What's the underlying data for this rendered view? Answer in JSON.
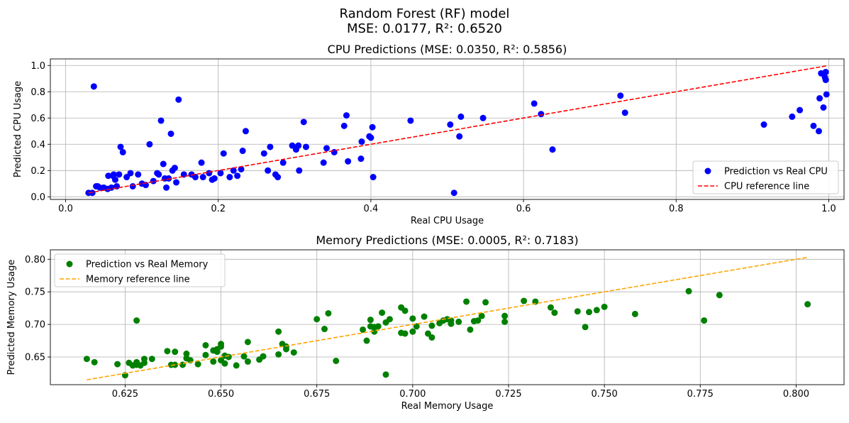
{
  "figure": {
    "title_line1": "Random Forest (RF) model",
    "title_line2": "MSE: 0.0177, R²: 0.6520"
  },
  "chart_data": [
    {
      "type": "scatter",
      "title": "CPU Predictions (MSE: 0.0350, R²: 0.5856)",
      "xlabel": "Real CPU Usage",
      "ylabel": "Predicted CPU Usage",
      "xlim": [
        -0.02,
        1.02
      ],
      "ylim": [
        -0.02,
        1.05
      ],
      "xticks": [
        0.0,
        0.2,
        0.4,
        0.6,
        0.8,
        1.0
      ],
      "xtick_labels": [
        "0.0",
        "0.2",
        "0.4",
        "0.6",
        "0.8",
        "1.0"
      ],
      "yticks": [
        0.0,
        0.2,
        0.4,
        0.6,
        0.8,
        1.0
      ],
      "ytick_labels": [
        "0.0",
        "0.2",
        "0.4",
        "0.6",
        "0.8",
        "1.0"
      ],
      "grid": true,
      "legend_position": "lower-right",
      "series": [
        {
          "name": "Prediction vs Real CPU",
          "kind": "scatter",
          "color": "#0000ff",
          "x": [
            0.03,
            0.035,
            0.04,
            0.042,
            0.045,
            0.05,
            0.055,
            0.056,
            0.06,
            0.062,
            0.063,
            0.065,
            0.067,
            0.07,
            0.072,
            0.075,
            0.08,
            0.085,
            0.088,
            0.095,
            0.1,
            0.105,
            0.11,
            0.115,
            0.12,
            0.122,
            0.125,
            0.128,
            0.13,
            0.132,
            0.135,
            0.138,
            0.14,
            0.143,
            0.145,
            0.148,
            0.155,
            0.165,
            0.17,
            0.178,
            0.18,
            0.188,
            0.192,
            0.195,
            0.203,
            0.207,
            0.215,
            0.22,
            0.225,
            0.23,
            0.232,
            0.236,
            0.26,
            0.265,
            0.268,
            0.275,
            0.278,
            0.285,
            0.297,
            0.302,
            0.305,
            0.306,
            0.312,
            0.315,
            0.338,
            0.342,
            0.352,
            0.365,
            0.368,
            0.37,
            0.387,
            0.388,
            0.398,
            0.4,
            0.402,
            0.403,
            0.452,
            0.504,
            0.509,
            0.516,
            0.518,
            0.547,
            0.614,
            0.623,
            0.638,
            0.727,
            0.733,
            0.915,
            0.952,
            0.962,
            0.98,
            0.987,
            0.988,
            0.99,
            0.993,
            0.995,
            0.996,
            0.996,
            0.997,
            0.037
          ],
          "y": [
            0.03,
            0.03,
            0.08,
            0.08,
            0.07,
            0.07,
            0.06,
            0.16,
            0.07,
            0.16,
            0.17,
            0.13,
            0.08,
            0.17,
            0.38,
            0.34,
            0.15,
            0.18,
            0.08,
            0.17,
            0.1,
            0.09,
            0.4,
            0.12,
            0.18,
            0.17,
            0.58,
            0.25,
            0.14,
            0.07,
            0.14,
            0.48,
            0.2,
            0.22,
            0.11,
            0.74,
            0.17,
            0.17,
            0.15,
            0.26,
            0.15,
            0.18,
            0.13,
            0.14,
            0.18,
            0.33,
            0.15,
            0.2,
            0.16,
            0.21,
            0.35,
            0.5,
            0.33,
            0.2,
            0.38,
            0.17,
            0.15,
            0.26,
            0.39,
            0.36,
            0.39,
            0.2,
            0.57,
            0.38,
            0.26,
            0.37,
            0.34,
            0.54,
            0.62,
            0.27,
            0.29,
            0.42,
            0.46,
            0.45,
            0.53,
            0.15,
            0.58,
            0.55,
            0.03,
            0.46,
            0.61,
            0.6,
            0.71,
            0.63,
            0.36,
            0.77,
            0.64,
            0.55,
            0.61,
            0.66,
            0.54,
            0.5,
            0.75,
            0.94,
            0.68,
            0.91,
            0.89,
            0.95,
            0.78,
            0.84
          ]
        },
        {
          "name": "CPU reference line",
          "kind": "line",
          "style": "dashed",
          "color": "#ff0000",
          "x": [
            0.03,
            0.997
          ],
          "y": [
            0.03,
            0.997
          ]
        }
      ]
    },
    {
      "type": "scatter",
      "title": "Memory Predictions (MSE: 0.0005, R²: 0.7183)",
      "xlabel": "Real Memory Usage",
      "ylabel": "Predicted Memory Usage",
      "xlim": [
        0.6055,
        0.8125
      ],
      "ylim": [
        0.6075,
        0.8145
      ],
      "xticks": [
        0.625,
        0.65,
        0.675,
        0.7,
        0.725,
        0.75,
        0.775,
        0.8
      ],
      "xtick_labels": [
        "0.625",
        "0.650",
        "0.675",
        "0.700",
        "0.725",
        "0.750",
        "0.775",
        "0.800"
      ],
      "yticks": [
        0.65,
        0.7,
        0.75,
        0.8
      ],
      "ytick_labels": [
        "0.65",
        "0.70",
        "0.75",
        "0.80"
      ],
      "grid": true,
      "legend_position": "upper-left",
      "series": [
        {
          "name": "Prediction vs Real Memory",
          "kind": "scatter",
          "color": "#008000",
          "x": [
            0.615,
            0.617,
            0.623,
            0.625,
            0.626,
            0.627,
            0.628,
            0.628,
            0.629,
            0.63,
            0.63,
            0.632,
            0.636,
            0.637,
            0.638,
            0.638,
            0.64,
            0.641,
            0.641,
            0.642,
            0.644,
            0.646,
            0.646,
            0.648,
            0.648,
            0.649,
            0.649,
            0.65,
            0.65,
            0.65,
            0.651,
            0.651,
            0.652,
            0.654,
            0.656,
            0.657,
            0.657,
            0.66,
            0.661,
            0.665,
            0.665,
            0.666,
            0.667,
            0.667,
            0.669,
            0.675,
            0.677,
            0.678,
            0.68,
            0.687,
            0.688,
            0.689,
            0.689,
            0.69,
            0.69,
            0.691,
            0.692,
            0.693,
            0.693,
            0.694,
            0.697,
            0.697,
            0.698,
            0.698,
            0.7,
            0.7,
            0.701,
            0.703,
            0.704,
            0.705,
            0.705,
            0.707,
            0.708,
            0.709,
            0.71,
            0.71,
            0.712,
            0.714,
            0.715,
            0.716,
            0.717,
            0.718,
            0.719,
            0.724,
            0.724,
            0.729,
            0.732,
            0.736,
            0.737,
            0.743,
            0.745,
            0.746,
            0.748,
            0.75,
            0.758,
            0.772,
            0.776,
            0.78,
            0.803,
            0.628
          ],
          "y": [
            0.647,
            0.642,
            0.639,
            0.622,
            0.641,
            0.637,
            0.638,
            0.642,
            0.637,
            0.641,
            0.647,
            0.647,
            0.659,
            0.638,
            0.638,
            0.658,
            0.638,
            0.655,
            0.648,
            0.645,
            0.639,
            0.668,
            0.653,
            0.66,
            0.643,
            0.658,
            0.662,
            0.666,
            0.67,
            0.645,
            0.64,
            0.652,
            0.65,
            0.637,
            0.651,
            0.673,
            0.643,
            0.646,
            0.651,
            0.689,
            0.654,
            0.67,
            0.666,
            0.662,
            0.657,
            0.708,
            0.693,
            0.717,
            0.644,
            0.692,
            0.675,
            0.697,
            0.707,
            0.689,
            0.696,
            0.697,
            0.718,
            0.703,
            0.623,
            0.708,
            0.726,
            0.687,
            0.686,
            0.721,
            0.689,
            0.709,
            0.697,
            0.712,
            0.686,
            0.68,
            0.698,
            0.702,
            0.706,
            0.708,
            0.706,
            0.701,
            0.704,
            0.735,
            0.692,
            0.705,
            0.706,
            0.713,
            0.734,
            0.713,
            0.704,
            0.736,
            0.735,
            0.726,
            0.718,
            0.72,
            0.696,
            0.719,
            0.722,
            0.727,
            0.716,
            0.751,
            0.706,
            0.745,
            0.731,
            0.706
          ],
          "size": 8
        },
        {
          "name": "Memory reference line",
          "kind": "line",
          "style": "dashed",
          "color": "#ffa500",
          "x": [
            0.615,
            0.803
          ],
          "y": [
            0.615,
            0.803
          ]
        }
      ]
    }
  ]
}
